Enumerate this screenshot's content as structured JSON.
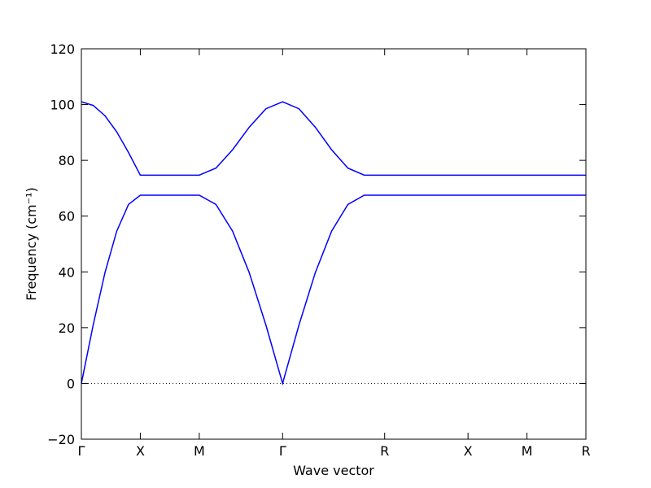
{
  "chart_data": {
    "type": "line",
    "xlabel": "Wave vector",
    "ylabel": "Frequency (cm⁻¹)",
    "x": [
      0,
      0.1,
      0.2,
      0.3,
      0.4,
      0.5,
      1.0,
      1.1414,
      1.2828,
      1.4243,
      1.5657,
      1.7071,
      1.8457,
      1.9843,
      2.1228,
      2.2614,
      2.4,
      2.5731,
      3.2802,
      3.7802,
      4.2802
    ],
    "series": [
      {
        "color": "#0000ff",
        "values": [
          0,
          20.9,
          39.7,
          54.6,
          64.2,
          67.5,
          67.5,
          64.2,
          54.6,
          39.7,
          20.9,
          0,
          20.9,
          39.7,
          54.6,
          64.2,
          67.5,
          67.5,
          67.5,
          67.5,
          67.5
        ]
      },
      {
        "color": "#0000ff",
        "values": [
          101,
          99.7,
          96.0,
          90.2,
          82.8,
          74.7,
          74.7,
          77.2,
          83.8,
          91.9,
          98.5,
          101,
          98.5,
          91.9,
          83.8,
          77.2,
          74.7,
          74.7,
          74.7,
          74.7,
          74.7
        ]
      }
    ],
    "xlim": [
      0,
      4.2802
    ],
    "xticks": [
      {
        "value": 0,
        "label": "Γ"
      },
      {
        "value": 0.5,
        "label": "X"
      },
      {
        "value": 1.0,
        "label": "M"
      },
      {
        "value": 1.7071,
        "label": "Γ"
      },
      {
        "value": 2.5731,
        "label": "R"
      },
      {
        "value": 3.2802,
        "label": "X"
      },
      {
        "value": 3.7802,
        "label": "M"
      },
      {
        "value": 4.2802,
        "label": "R"
      }
    ],
    "ylim": [
      -20,
      120
    ],
    "yticks": [
      {
        "value": -20,
        "label": "−20"
      },
      0,
      20,
      40,
      60,
      80,
      100,
      120
    ],
    "zero_line": true,
    "grid": false
  }
}
